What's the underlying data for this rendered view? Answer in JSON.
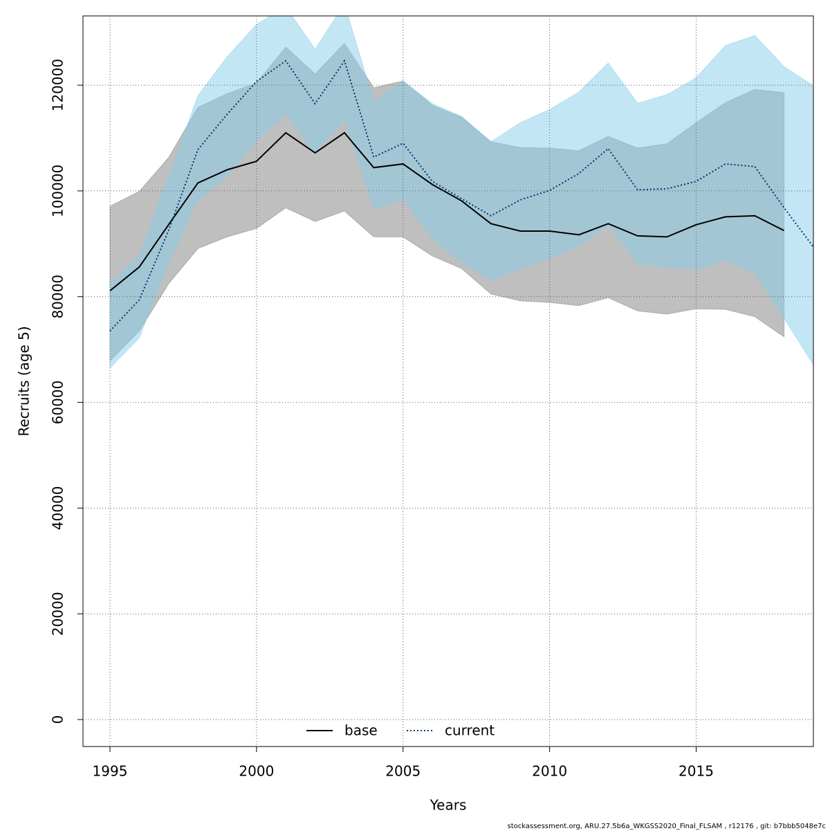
{
  "chart_data": {
    "type": "band-line",
    "x_label": "Years",
    "y_label": "Recruits (age 5)",
    "footer": "stockassessment.org, ARU.27.5b6a_WKGSS2020_Final_FLSAM , r12176 , git: b7bbb5048e7c",
    "x": [
      1995,
      1996,
      1997,
      1998,
      1999,
      2000,
      2001,
      2002,
      2003,
      2004,
      2005,
      2006,
      2007,
      2008,
      2009,
      2010,
      2011,
      2012,
      2013,
      2014,
      2015,
      2016,
      2017,
      2018,
      2019
    ],
    "xlim": [
      1994.08,
      2019
    ],
    "xticks": [
      1995,
      2000,
      2005,
      2010,
      2015
    ],
    "ylim": [
      -5100,
      133100
    ],
    "yticks": [
      0,
      20000,
      40000,
      60000,
      80000,
      100000,
      120000
    ],
    "grid": true,
    "series": [
      {
        "name": "base",
        "color": "#000000",
        "band_color": "rgba(128,128,128,0.5)",
        "dash": "solid",
        "values": [
          81100,
          85600,
          93600,
          101500,
          104000,
          105600,
          111000,
          107200,
          111000,
          104400,
          105100,
          101200,
          98100,
          93800,
          92400,
          92400,
          91700,
          93800,
          91500,
          91300,
          93600,
          95100,
          95300,
          92500,
          null
        ],
        "lower": [
          67800,
          73500,
          82400,
          89100,
          91300,
          92900,
          96800,
          94200,
          96200,
          91300,
          91300,
          87700,
          85300,
          80500,
          79200,
          78900,
          78300,
          79800,
          77300,
          76700,
          77700,
          77600,
          76200,
          72400,
          null
        ],
        "upper": [
          97100,
          99900,
          106300,
          115800,
          118400,
          120400,
          127200,
          122100,
          127900,
          119500,
          120800,
          116200,
          113900,
          109300,
          108200,
          108100,
          107600,
          110300,
          108100,
          108900,
          112900,
          116700,
          119200,
          118600,
          null
        ]
      },
      {
        "name": "current",
        "color": "#00306e",
        "band_color": "rgba(135,206,235,0.5)",
        "dash": "dotted",
        "values": [
          73500,
          79400,
          92500,
          107800,
          114500,
          120700,
          124600,
          116500,
          124600,
          106400,
          109000,
          101800,
          98500,
          95300,
          98300,
          100100,
          103300,
          108000,
          100200,
          100400,
          101800,
          105100,
          104600,
          96800,
          89400
        ],
        "lower": [
          66500,
          72200,
          86400,
          98200,
          102700,
          109500,
          114500,
          107200,
          113600,
          96600,
          98400,
          90900,
          86600,
          83100,
          85300,
          87300,
          89600,
          93600,
          86400,
          85500,
          85200,
          86800,
          84500,
          75900,
          67100
        ],
        "upper": [
          82400,
          87700,
          102600,
          118000,
          125400,
          131500,
          134800,
          126800,
          135400,
          116900,
          120800,
          116500,
          114100,
          109300,
          112900,
          115400,
          118700,
          124200,
          116600,
          118200,
          121400,
          127500,
          129400,
          123500,
          119900
        ]
      }
    ]
  }
}
